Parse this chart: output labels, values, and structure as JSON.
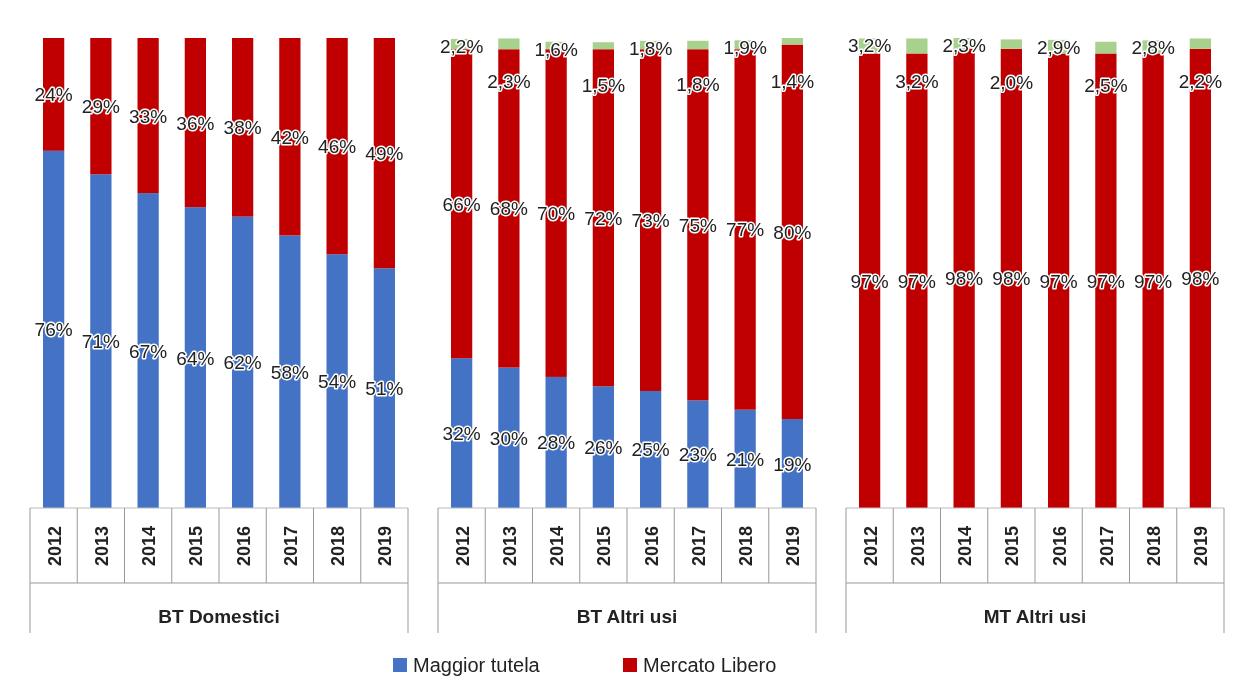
{
  "chart_data": [
    {
      "type": "bar",
      "stacked": true,
      "xlabel": "BT Domestici",
      "categories": [
        "2012",
        "2013",
        "2014",
        "2015",
        "2016",
        "2017",
        "2018",
        "2019"
      ],
      "tick_labels": "x",
      "legend": "bottom",
      "series": [
        {
          "name": "Maggior tutela",
          "color": "#4472c4",
          "values": [
            76,
            71,
            67,
            64,
            62,
            58,
            54,
            51
          ],
          "value_labels": [
            "76%",
            "71%",
            "67%",
            "64%",
            "62%",
            "58%",
            "54%",
            "51%"
          ]
        },
        {
          "name": "Mercato Libero",
          "color": "#c00000",
          "values": [
            24,
            29,
            33,
            36,
            38,
            42,
            46,
            49
          ],
          "value_labels": [
            "24%",
            "29%",
            "33%",
            "36%",
            "38%",
            "42%",
            "46%",
            "49%"
          ]
        }
      ]
    },
    {
      "type": "bar",
      "stacked": true,
      "xlabel": "BT Altri usi",
      "categories": [
        "2012",
        "2013",
        "2014",
        "2015",
        "2016",
        "2017",
        "2018",
        "2019"
      ],
      "tick_labels": "x",
      "series": [
        {
          "name": "Maggior tutela",
          "color": "#4472c4",
          "values": [
            32,
            30,
            28,
            26,
            25,
            23,
            21,
            19
          ],
          "value_labels": [
            "32%",
            "30%",
            "28%",
            "26%",
            "25%",
            "23%",
            "21%",
            "19%"
          ]
        },
        {
          "name": "Mercato Libero",
          "color": "#c00000",
          "values": [
            66,
            68,
            70,
            72,
            73,
            75,
            77,
            80
          ],
          "value_labels": [
            "66%",
            "68%",
            "70%",
            "72%",
            "73%",
            "75%",
            "77%",
            "80%"
          ]
        },
        {
          "color": "#a9d18e",
          "values": [
            2.2,
            2.3,
            1.6,
            1.5,
            1.8,
            1.8,
            1.9,
            1.4
          ],
          "value_labels": [
            "2,2%",
            "2,3%",
            "1,6%",
            "1,5%",
            "1,8%",
            "1,8%",
            "1,9%",
            "1,4%"
          ]
        }
      ]
    },
    {
      "type": "bar",
      "stacked": true,
      "xlabel": "MT Altri usi",
      "categories": [
        "2012",
        "2013",
        "2014",
        "2015",
        "2016",
        "2017",
        "2018",
        "2019"
      ],
      "tick_labels": "x",
      "series": [
        {
          "name": "Mercato Libero",
          "color": "#c00000",
          "values": [
            97,
            97,
            98,
            98,
            97,
            97,
            97,
            98
          ],
          "value_labels": [
            "97%",
            "97%",
            "98%",
            "98%",
            "97%",
            "97%",
            "97%",
            "98%"
          ]
        },
        {
          "color": "#a9d18e",
          "values": [
            3.2,
            3.2,
            2.3,
            2.0,
            2.9,
            2.5,
            2.8,
            2.2
          ],
          "value_labels": [
            "3,2%",
            "3,2%",
            "2,3%",
            "2,0%",
            "2,9%",
            "2,5%",
            "2,8%",
            "2,2%"
          ]
        }
      ]
    }
  ]
}
